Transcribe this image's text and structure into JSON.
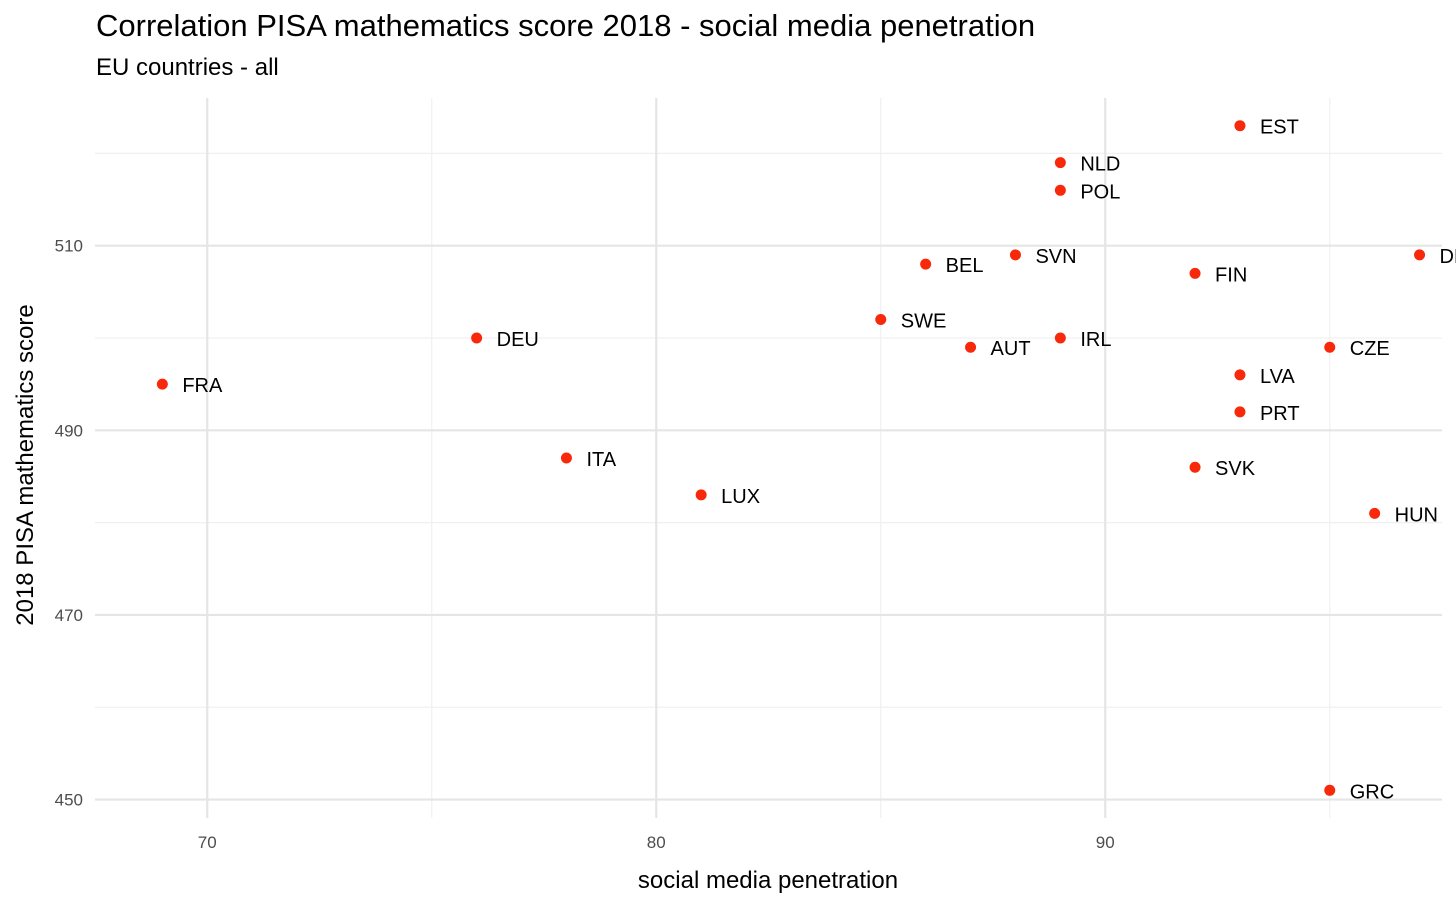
{
  "chart_data": {
    "type": "scatter",
    "title": "Correlation PISA mathematics score 2018 - social media penetration",
    "subtitle": "EU countries - all",
    "xlabel": "social media penetration",
    "ylabel": "2018 PISA mathematics score",
    "xlim": [
      67.5,
      97.5
    ],
    "ylim": [
      448,
      526
    ],
    "x_ticks": [
      70,
      80,
      90
    ],
    "y_ticks": [
      450,
      470,
      490,
      510
    ],
    "grid": true,
    "point_color": "#f8290b",
    "points": [
      {
        "label": "EST",
        "x": 93,
        "y": 523
      },
      {
        "label": "NLD",
        "x": 89,
        "y": 519
      },
      {
        "label": "POL",
        "x": 89,
        "y": 516
      },
      {
        "label": "DNK",
        "x": 97,
        "y": 509
      },
      {
        "label": "SVN",
        "x": 88,
        "y": 509
      },
      {
        "label": "BEL",
        "x": 86,
        "y": 508
      },
      {
        "label": "FIN",
        "x": 92,
        "y": 507
      },
      {
        "label": "SWE",
        "x": 85,
        "y": 502
      },
      {
        "label": "DEU",
        "x": 76,
        "y": 500
      },
      {
        "label": "IRL",
        "x": 89,
        "y": 500
      },
      {
        "label": "AUT",
        "x": 87,
        "y": 499
      },
      {
        "label": "CZE",
        "x": 95,
        "y": 499
      },
      {
        "label": "LVA",
        "x": 93,
        "y": 496
      },
      {
        "label": "FRA",
        "x": 69,
        "y": 495
      },
      {
        "label": "PRT",
        "x": 93,
        "y": 492
      },
      {
        "label": "ITA",
        "x": 78,
        "y": 487
      },
      {
        "label": "SVK",
        "x": 92,
        "y": 486
      },
      {
        "label": "LUX",
        "x": 81,
        "y": 483
      },
      {
        "label": "HUN",
        "x": 96,
        "y": 481
      },
      {
        "label": "GRC",
        "x": 95,
        "y": 451
      }
    ]
  }
}
